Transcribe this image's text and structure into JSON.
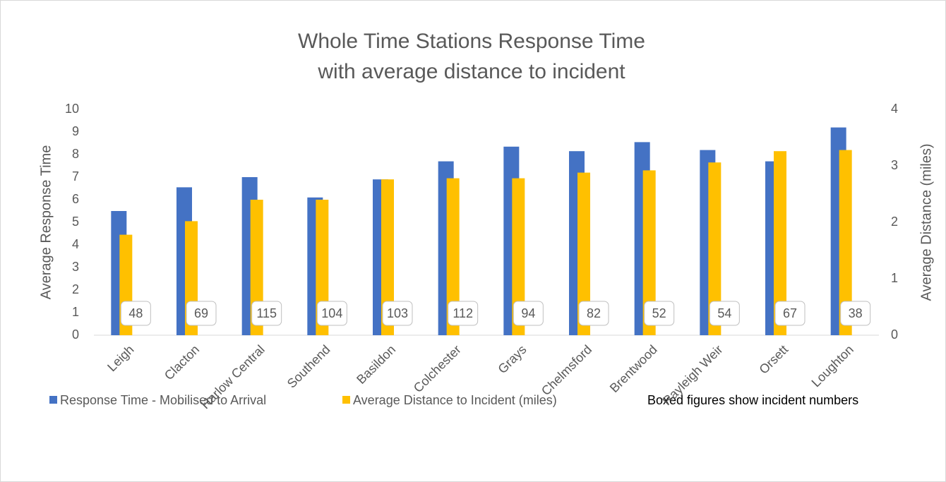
{
  "chart_data": {
    "type": "bar",
    "title": "Whole Time Stations Response Time",
    "subtitle": "with average distance to incident",
    "y_label": "Average Response Time",
    "y2_label": "Average Distance (miles)",
    "note": "Boxed figures show incident numbers",
    "categories": [
      "Leigh",
      "Clacton",
      "Harlow Central",
      "Southend",
      "Basildon",
      "Colchester",
      "Grays",
      "Chelmsford",
      "Brentwood",
      "Rayleigh Weir",
      "Orsett",
      "Loughton"
    ],
    "series": [
      {
        "name": "Response Time - Mobilised to Arrival",
        "color": "#4472c4",
        "values": [
          5.5,
          6.55,
          7.0,
          6.1,
          6.9,
          7.7,
          8.35,
          8.15,
          8.55,
          8.2,
          7.7,
          9.2
        ]
      },
      {
        "name": "Average Distance to Incident (miles)",
        "color": "#ffc000",
        "axis": "y2",
        "values": [
          1.78,
          2.02,
          2.4,
          2.4,
          2.76,
          2.78,
          2.78,
          2.88,
          2.92,
          3.06,
          3.26,
          3.28
        ]
      }
    ],
    "incident_numbers": [
      48,
      69,
      115,
      104,
      103,
      112,
      94,
      82,
      52,
      54,
      67,
      38
    ],
    "ylim": [
      0,
      10
    ],
    "yticks": [
      0,
      1,
      2,
      3,
      4,
      5,
      6,
      7,
      8,
      9,
      10
    ],
    "y2lim": [
      0,
      4
    ],
    "y2ticks": [
      0,
      1,
      2,
      3,
      4
    ],
    "grid": false
  }
}
